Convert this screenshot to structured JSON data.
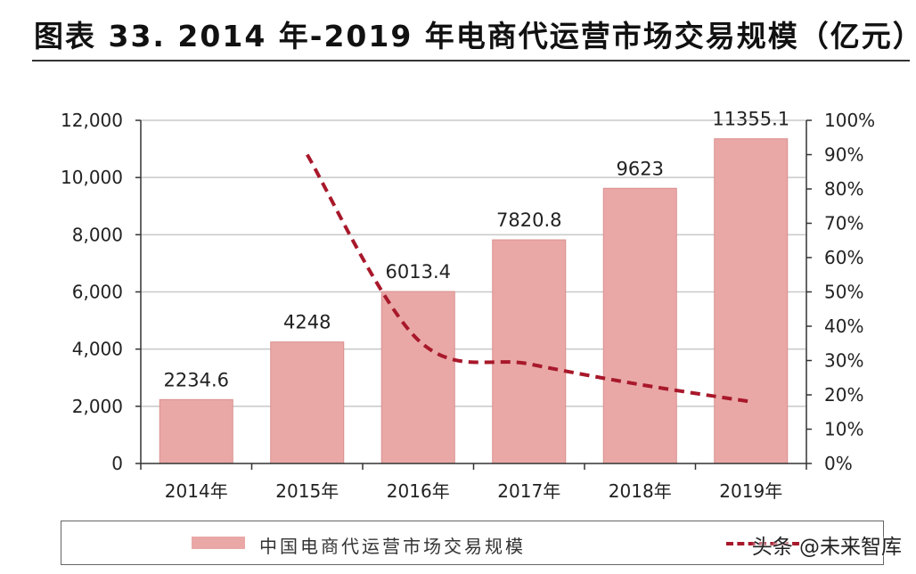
{
  "title": "图表 33. 2014 年-2019 年电商代运营市场交易规模（亿元）",
  "watermark": "头条 @未来智库",
  "colors": {
    "bar": "#e9a8a6",
    "bar_stroke": "#d98f8d",
    "line": "#a8182b",
    "axis": "#333333",
    "grid": "#c8c8c8"
  },
  "chart_data": {
    "type": "bar",
    "categories": [
      "2014年",
      "2015年",
      "2016年",
      "2017年",
      "2018年",
      "2019年"
    ],
    "series": [
      {
        "name": "中国电商代运营市场交易规模",
        "type": "bar",
        "axis": "left",
        "values": [
          2234.6,
          4248,
          6013.4,
          7820.8,
          9623,
          11355.1
        ],
        "labels": [
          "2234.6",
          "4248",
          "6013.4",
          "7820.8",
          "9623",
          "11355.1"
        ]
      },
      {
        "name": "",
        "type": "line",
        "style": "dashed",
        "axis": "right",
        "values": [
          null,
          0.9,
          0.36,
          0.29,
          0.23,
          0.18
        ]
      }
    ],
    "ylim_left": [
      0,
      12000
    ],
    "yticks_left": [
      "0",
      "2,000",
      "4,000",
      "6,000",
      "8,000",
      "10,000",
      "12,000"
    ],
    "ylim_right": [
      0,
      1
    ],
    "yticks_right": [
      "0%",
      "10%",
      "20%",
      "30%",
      "40%",
      "50%",
      "60%",
      "70%",
      "80%",
      "90%",
      "100%"
    ],
    "grid": true,
    "legend": "bottom"
  }
}
